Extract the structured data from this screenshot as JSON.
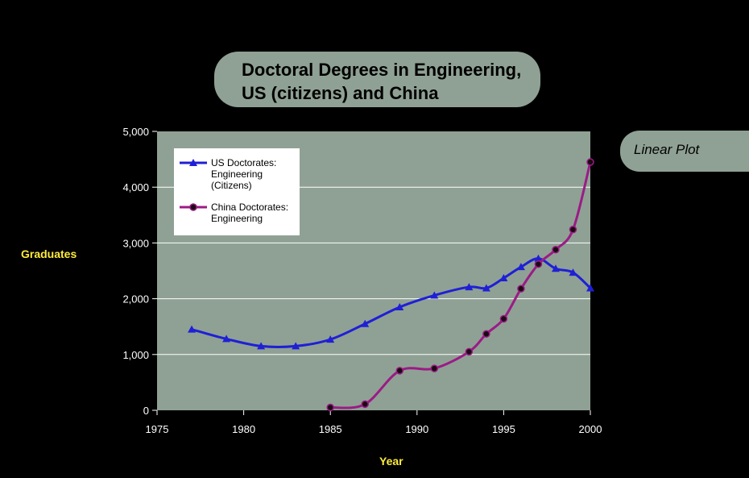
{
  "title_lines": [
    "Doctoral Degrees in Engineering,",
    "US (citizens) and China"
  ],
  "side_label": "Linear Plot",
  "colors": {
    "background": "#000000",
    "plot_area": "#8fa194",
    "us_series": "#1f1fd6",
    "china_series": "#9b1b86",
    "axis_title": "#ffeb3b"
  },
  "chart_data": {
    "type": "line",
    "title": "Doctoral Degrees in Engineering, US (citizens) and China",
    "xlabel": "Year",
    "ylabel": "Graduates",
    "xlim": [
      1975,
      2000
    ],
    "ylim": [
      0,
      5000
    ],
    "x_ticks": [
      "1975",
      "1980",
      "1985",
      "1990",
      "1995",
      "2000"
    ],
    "y_ticks": [
      "0",
      "1,000",
      "2,000",
      "3,000",
      "4,000",
      "5,000"
    ],
    "grid": "horizontal",
    "legend_position": "top-left",
    "series": [
      {
        "name": "US Doctorates: Engineering (Citizens)",
        "legend_lines": [
          "US Doctorates:",
          "Engineering",
          "(Citizens)"
        ],
        "marker": "triangle",
        "x": [
          1977,
          1979,
          1981,
          1983,
          1985,
          1987,
          1989,
          1991,
          1993,
          1994,
          1995,
          1996,
          1997,
          1998,
          1999,
          2000
        ],
        "y": [
          1450,
          1280,
          1150,
          1150,
          1270,
          1550,
          1850,
          2060,
          2210,
          2190,
          2370,
          2570,
          2720,
          2540,
          2470,
          2190
        ]
      },
      {
        "name": "China Doctorates: Engineering",
        "legend_lines": [
          "China Doctorates:",
          "Engineering"
        ],
        "marker": "circle",
        "x": [
          1985,
          1987,
          1989,
          1991,
          1993,
          1994,
          1995,
          1996,
          1997,
          1998,
          1999,
          2000
        ],
        "y": [
          50,
          110,
          710,
          750,
          1050,
          1370,
          1640,
          2180,
          2620,
          2880,
          3240,
          4450
        ]
      }
    ]
  }
}
